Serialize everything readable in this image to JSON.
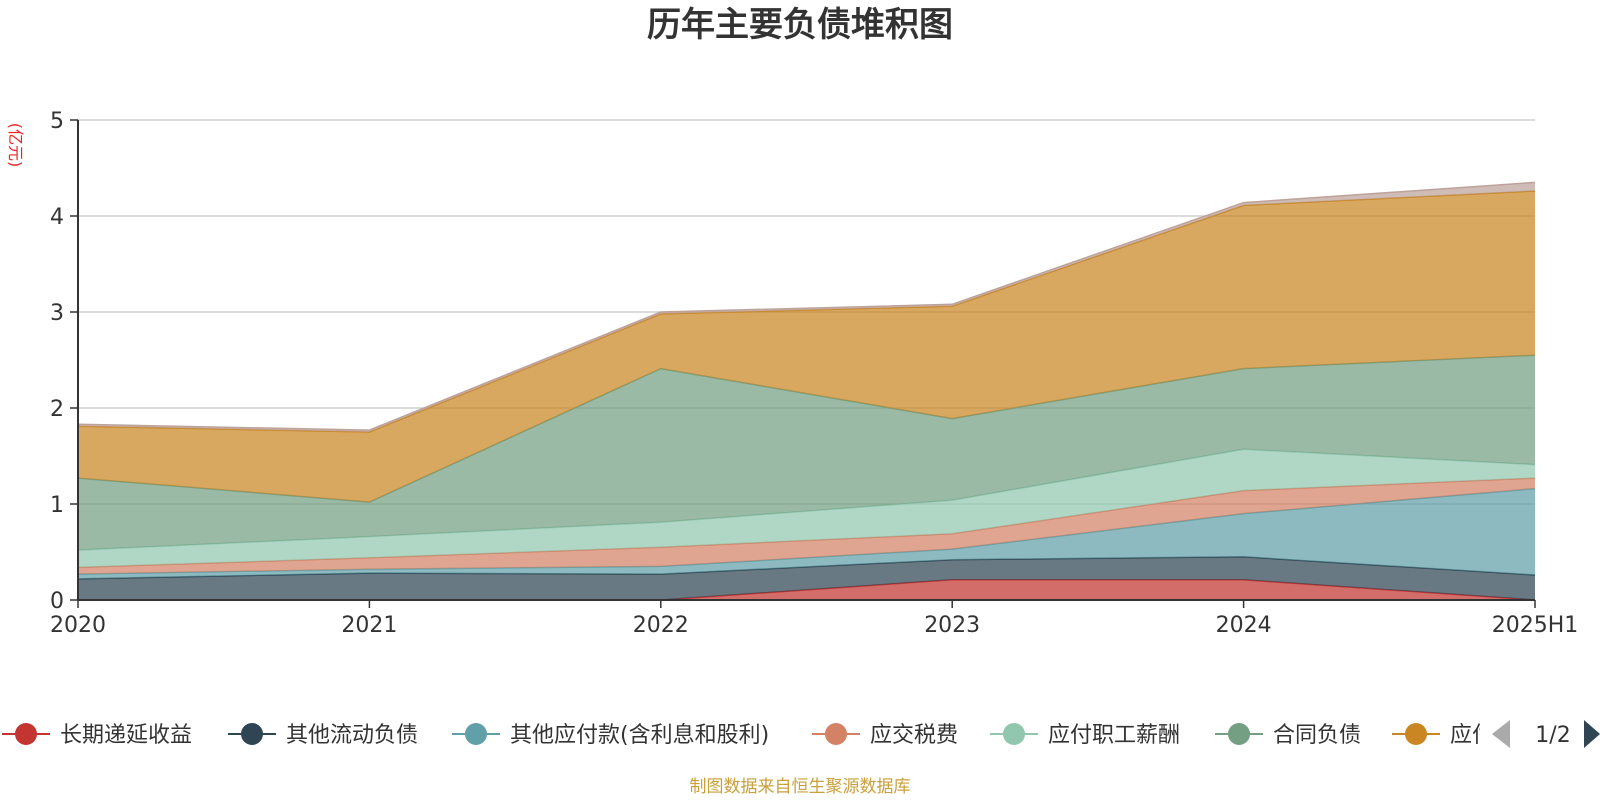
{
  "chart_data": {
    "type": "area",
    "stacked": true,
    "title": "历年主要负债堆积图",
    "unit": "(亿元)",
    "x": [
      "2020",
      "2021",
      "2022",
      "2023",
      "2024",
      "2025H1"
    ],
    "ylim": [
      0,
      5
    ],
    "yticks": [
      "0",
      "1",
      "2",
      "3",
      "4",
      "5"
    ],
    "grid": true,
    "legend_position": "bottom",
    "series": [
      {
        "name": "长期递延收益",
        "color": "#c23531",
        "values": [
          0,
          0,
          0,
          0.21,
          0.21,
          0
        ]
      },
      {
        "name": "其他流动负债",
        "color": "#2f4554",
        "values": [
          0.22,
          0.28,
          0.27,
          0.21,
          0.24,
          0.26
        ]
      },
      {
        "name": "其他应付款(含利息和股利)",
        "color": "#61a0a8",
        "values": [
          0.05,
          0.04,
          0.08,
          0.11,
          0.45,
          0.9
        ]
      },
      {
        "name": "应交税费",
        "color": "#d48265",
        "values": [
          0.07,
          0.12,
          0.2,
          0.16,
          0.24,
          0.11
        ]
      },
      {
        "name": "应付职工薪酬",
        "color": "#91c7ae",
        "values": [
          0.18,
          0.22,
          0.26,
          0.35,
          0.43,
          0.14
        ]
      },
      {
        "name": "合同负债",
        "color": "#749f83",
        "values": [
          0.75,
          0.36,
          1.6,
          0.85,
          0.84,
          1.14
        ]
      },
      {
        "name": "应付账款",
        "color": "#ca8622",
        "values": [
          0.54,
          0.73,
          0.57,
          1.17,
          1.7,
          1.71
        ]
      },
      {
        "name": "",
        "color": "#bda29a",
        "values": [
          0.02,
          0.02,
          0.02,
          0.02,
          0.03,
          0.09
        ]
      }
    ],
    "legend_items": [
      "长期递延收益",
      "其他流动负债",
      "其他应付款(含利息和股利)",
      "应交税费",
      "应付职工薪酬",
      "合同负债",
      "应付"
    ],
    "legend_pager": "1/2"
  },
  "footer": {
    "source": "制图数据来自恒生聚源数据库",
    "color": "#c9a03a"
  }
}
